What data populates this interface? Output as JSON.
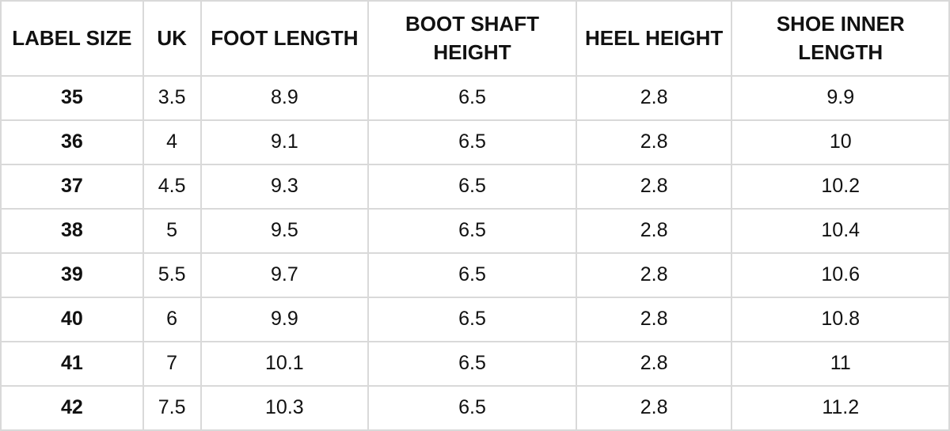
{
  "colors": {
    "border": "#d9d9d9",
    "text": "#111111",
    "background": "#ffffff"
  },
  "chart_data": {
    "type": "table",
    "columns": [
      "LABEL SIZE",
      "UK",
      "FOOT LENGTH",
      "BOOT SHAFT HEIGHT",
      "HEEL HEIGHT",
      "SHOE INNER LENGTH"
    ],
    "rows": [
      [
        "35",
        "3.5",
        "8.9",
        "6.5",
        "2.8",
        "9.9"
      ],
      [
        "36",
        "4",
        "9.1",
        "6.5",
        "2.8",
        "10"
      ],
      [
        "37",
        "4.5",
        "9.3",
        "6.5",
        "2.8",
        "10.2"
      ],
      [
        "38",
        "5",
        "9.5",
        "6.5",
        "2.8",
        "10.4"
      ],
      [
        "39",
        "5.5",
        "9.7",
        "6.5",
        "2.8",
        "10.6"
      ],
      [
        "40",
        "6",
        "9.9",
        "6.5",
        "2.8",
        "10.8"
      ],
      [
        "41",
        "7",
        "10.1",
        "6.5",
        "2.8",
        "11"
      ],
      [
        "42",
        "7.5",
        "10.3",
        "6.5",
        "2.8",
        "11.2"
      ]
    ]
  }
}
